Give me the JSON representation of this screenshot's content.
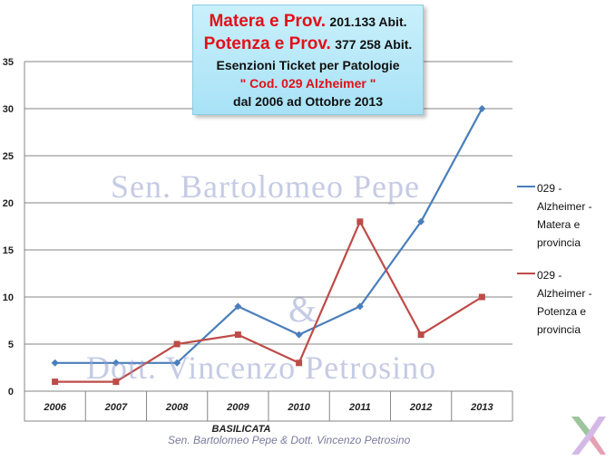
{
  "title": {
    "line1_name": "Matera e Prov.",
    "line1_value": "201.133 Abit.",
    "line2_name": "Potenza e Prov.",
    "line2_value": "377 258 Abit.",
    "line3": "Esenzioni Ticket per Patologie",
    "line4": "\" Cod. 029 Alzheimer \"",
    "line5": "dal 2006 ad Ottobre 2013"
  },
  "watermarks": {
    "line1": "Sen. Bartolomeo Pepe",
    "line2": "&",
    "line3": "Dott. Vincenzo Petrosino"
  },
  "footer": "Sen. Bartolomeo  Pepe & Dott. Vincenzo Petrosino",
  "chart_data": {
    "type": "line",
    "x_axis_label": "BASILICATA",
    "categories": [
      "2006",
      "2007",
      "2008",
      "2009",
      "2010",
      "2011",
      "2012",
      "2013"
    ],
    "ylim": [
      0,
      35
    ],
    "yticks": [
      0,
      5,
      10,
      15,
      20,
      25,
      30,
      35
    ],
    "grid": true,
    "legend_position": "right",
    "series": [
      {
        "name": "029 - Alzheimer - Matera e provincia",
        "legend_lines": [
          "029 -",
          "Alzheimer -",
          "Matera e",
          "provincia"
        ],
        "color": "#4a7ebb",
        "marker": "diamond",
        "values": [
          3,
          3,
          3,
          9,
          6,
          9,
          18,
          30
        ]
      },
      {
        "name": "029 - Alzheimer - Potenza e provincia",
        "legend_lines": [
          "029 -",
          "Alzheimer -",
          "Potenza e",
          "provincia"
        ],
        "color": "#be4b48",
        "marker": "square",
        "values": [
          1,
          1,
          5,
          6,
          3,
          18,
          6,
          10
        ]
      }
    ]
  }
}
